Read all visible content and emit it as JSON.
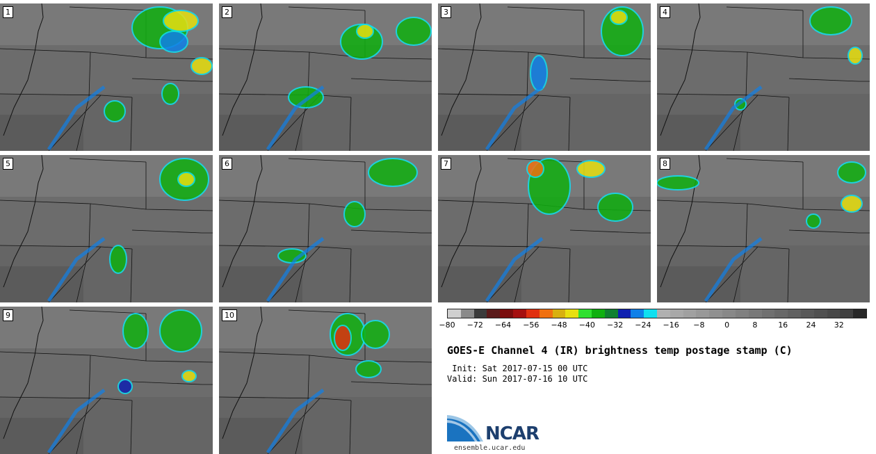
{
  "panels": [
    {
      "label": "1"
    },
    {
      "label": "2"
    },
    {
      "label": "3"
    },
    {
      "label": "4"
    },
    {
      "label": "5"
    },
    {
      "label": "6"
    },
    {
      "label": "7"
    },
    {
      "label": "8"
    },
    {
      "label": "9"
    },
    {
      "label": "10"
    }
  ],
  "colorbar": {
    "colors": [
      "#cfcfcf",
      "#8a8a8a",
      "#3b3b3b",
      "#5a1a1a",
      "#7a0c0c",
      "#a50f0f",
      "#e03010",
      "#f07010",
      "#d8b010",
      "#e8e010",
      "#30e030",
      "#10b010",
      "#108030",
      "#1020b0",
      "#1080e8",
      "#10e0f0",
      "#b0b0b0",
      "#a8a8a8",
      "#a0a0a0",
      "#989898",
      "#909090",
      "#888888",
      "#808080",
      "#787878",
      "#707070",
      "#686868",
      "#606060",
      "#585858",
      "#505050",
      "#484848",
      "#404040",
      "#282828"
    ],
    "tick_labels": [
      "-80",
      "-72",
      "-64",
      "-56",
      "-48",
      "-40",
      "-32",
      "-24",
      "-16",
      "-8",
      "0",
      "8",
      "16",
      "24",
      "32"
    ],
    "range": [
      -80,
      40
    ]
  },
  "title": "GOES-E Channel 4 (IR) brightness temp postage stamp (C)",
  "init_line": " Init: Sat 2017-07-15 00 UTC",
  "valid_line": "Valid: Sun 2017-07-16 10 UTC",
  "logo": {
    "text": "NCAR",
    "url": "ensemble.ucar.edu"
  }
}
